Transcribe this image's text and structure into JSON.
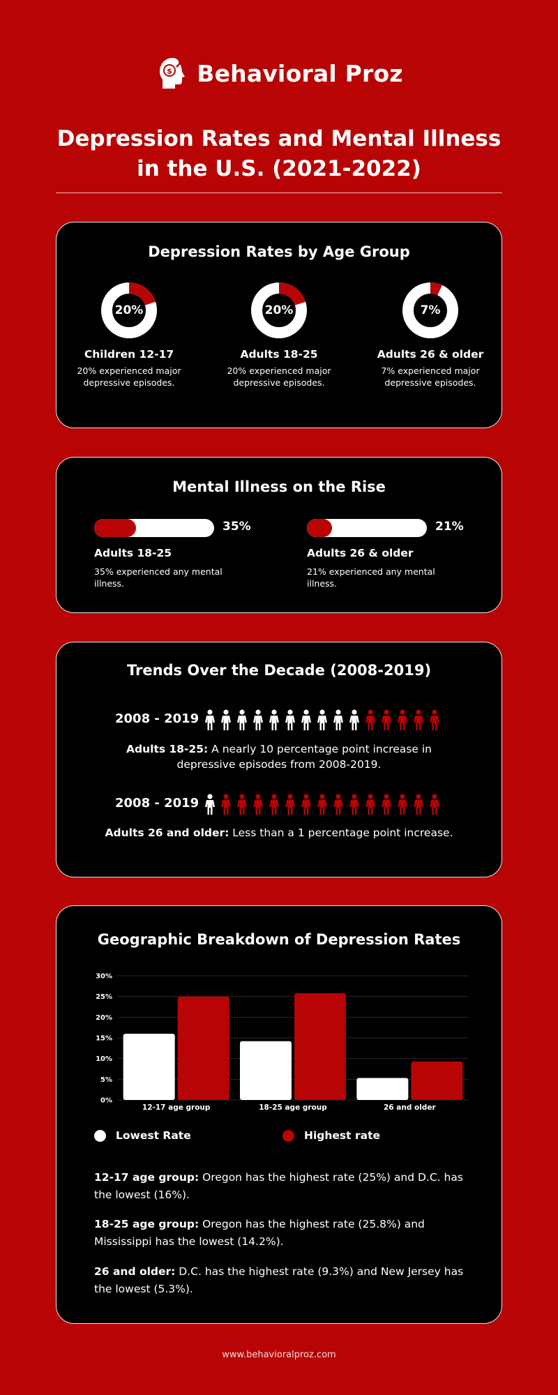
{
  "brand": {
    "name": "Behavioral Proz",
    "logo_icon": "head-profile-gear-dollar-icon"
  },
  "title": "Depression Rates and Mental Illness in the U.S. (2021-2022)",
  "colors": {
    "background": "#b80404",
    "accent": "#b80404",
    "card": "#000000",
    "light": "#ffffff"
  },
  "age_section": {
    "title": "Depression Rates by Age Group",
    "groups": [
      {
        "value_label": "20%",
        "value": 20,
        "label": "Children 12-17",
        "desc": "20% experienced major depressive episodes."
      },
      {
        "value_label": "20%",
        "value": 20,
        "label": "Adults 18-25",
        "desc": "20% experienced major depressive episodes."
      },
      {
        "value_label": "7%",
        "value": 7,
        "label": "Adults 26 & older",
        "desc": "7% experienced major depressive episodes."
      }
    ]
  },
  "rise_section": {
    "title": "Mental Illness on the Rise",
    "items": [
      {
        "value_label": "35%",
        "value": 35,
        "label": "Adults 18-25",
        "desc": "35% experienced any mental illness."
      },
      {
        "value_label": "21%",
        "value": 21,
        "label": "Adults 26 & older",
        "desc": "21% experienced any mental illness."
      }
    ]
  },
  "trend_section": {
    "title": "Trends Over the Decade (2008-2019)",
    "rows": [
      {
        "year_range": "2008 - 2019",
        "icon": "person-icon",
        "white_count": 10,
        "red_count": 5,
        "label": "Adults 18-25:",
        "text": " A nearly 10 percentage point increase in depressive episodes from 2008-2019."
      },
      {
        "year_range": "2008 - 2019",
        "icon": "person-icon",
        "white_count": 1,
        "red_count": 14,
        "label": "Adults 26 and older:",
        "text": " Less than a 1 percentage point increase."
      }
    ]
  },
  "geo_section": {
    "title": "Geographic Breakdown of Depression Rates",
    "legend": [
      {
        "label": "Lowest Rate",
        "color": "#ffffff"
      },
      {
        "label": "Highest rate",
        "color": "#b80404"
      }
    ],
    "notes": [
      {
        "label": "12-17 age group:",
        "text": " Oregon has the highest rate (25%) and D.C. has the lowest (16%)."
      },
      {
        "label": "18-25 age group:",
        "text": " Oregon has the highest rate (25.8%) and Mississippi has the lowest (14.2%)."
      },
      {
        "label": "26 and older:",
        "text": " D.C. has the highest rate (9.3%) and New Jersey has the lowest (5.3%)."
      }
    ]
  },
  "chart_data": {
    "type": "bar",
    "categories": [
      "12-17 age group",
      "18-25 age group",
      "26 and older"
    ],
    "series": [
      {
        "name": "Lowest Rate",
        "color": "#ffffff",
        "values": [
          16,
          14.2,
          5.3
        ]
      },
      {
        "name": "Highest rate",
        "color": "#b80404",
        "values": [
          25,
          25.8,
          9.3
        ]
      }
    ],
    "y_ticks": [
      "0%",
      "5%",
      "10%",
      "15%",
      "20%",
      "25%",
      "30%"
    ],
    "ylim": [
      0,
      30
    ],
    "grid": true,
    "legend_position": "bottom"
  },
  "footer": {
    "url": "www.behavioralproz.com"
  }
}
